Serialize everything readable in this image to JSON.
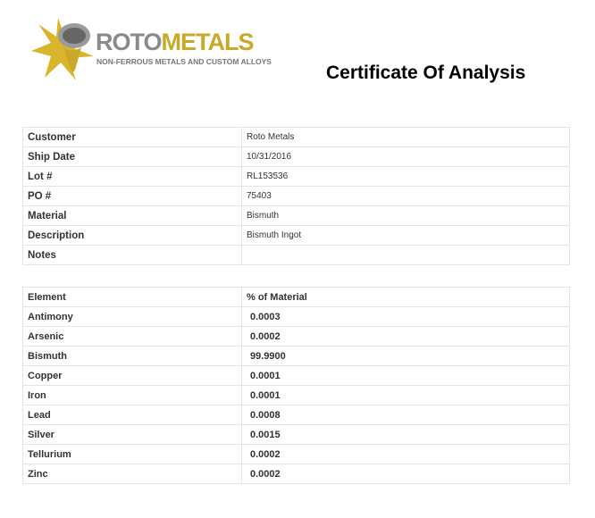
{
  "logo": {
    "brand_part1": "ROTO",
    "brand_part2": "METALS",
    "tagline": "NON-FERROUS METALS AND CUSTOM ALLOYS",
    "colors": {
      "gold": "#c9a92a",
      "gray": "#8a8a8a"
    }
  },
  "title": "Certificate Of Analysis",
  "info": [
    {
      "label": "Customer",
      "value": "Roto Metals"
    },
    {
      "label": "Ship Date",
      "value": "10/31/2016"
    },
    {
      "label": "Lot #",
      "value": "RL153536"
    },
    {
      "label": "PO #",
      "value": "75403"
    },
    {
      "label": "Material",
      "value": "Bismuth"
    },
    {
      "label": "Description",
      "value": "Bismuth Ingot"
    },
    {
      "label": "Notes",
      "value": ""
    }
  ],
  "analysis": {
    "headers": [
      "Element",
      "% of Material"
    ],
    "rows": [
      {
        "element": "Antimony",
        "pct": "0.0003"
      },
      {
        "element": "Arsenic",
        "pct": "0.0002"
      },
      {
        "element": "Bismuth",
        "pct": "99.9900"
      },
      {
        "element": "Copper",
        "pct": "0.0001"
      },
      {
        "element": "Iron",
        "pct": "0.0001"
      },
      {
        "element": "Lead",
        "pct": "0.0008"
      },
      {
        "element": "Silver",
        "pct": "0.0015"
      },
      {
        "element": "Tellurium",
        "pct": "0.0002"
      },
      {
        "element": "Zinc",
        "pct": "0.0002"
      }
    ]
  }
}
